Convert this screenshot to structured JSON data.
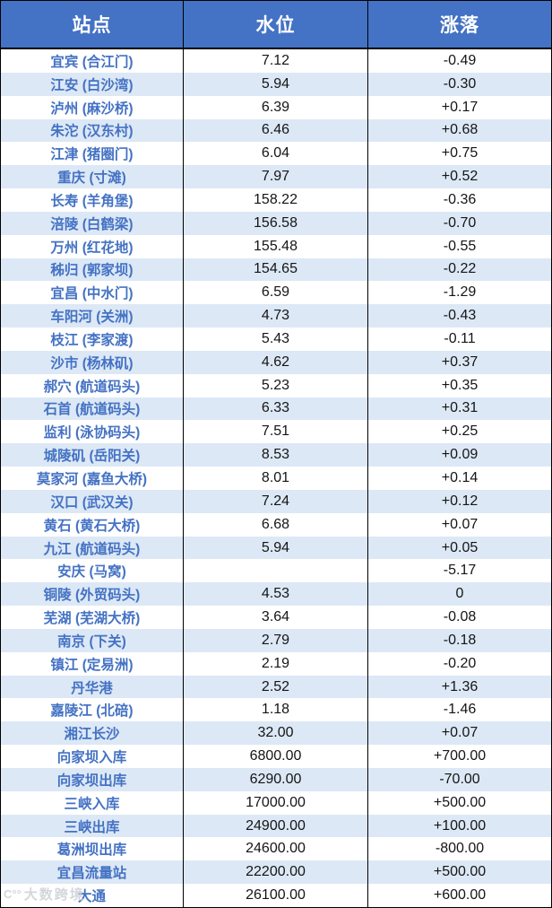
{
  "colors": {
    "header_bg": "#4472C4",
    "header_text": "#FFFFFF",
    "band_row_bg": "#DCE8F5",
    "station_text": "#4472C4",
    "value_text": "#151515",
    "grid_border": "#000000"
  },
  "watermark": {
    "logo": "C°°",
    "text": "大数跨境"
  },
  "chart_data": {
    "type": "table",
    "title": "",
    "columns": [
      "站点",
      "水位",
      "涨落"
    ],
    "rows": [
      [
        "宜宾 (合江门)",
        "7.12",
        "-0.49"
      ],
      [
        "江安 (白沙湾)",
        "5.94",
        "-0.30"
      ],
      [
        "泸州 (麻沙桥)",
        "6.39",
        "+0.17"
      ],
      [
        "朱沱 (汉东村)",
        "6.46",
        "+0.68"
      ],
      [
        "江津 (猪圈门)",
        "6.04",
        "+0.75"
      ],
      [
        "重庆 (寸滩)",
        "7.97",
        "+0.52"
      ],
      [
        "长寿 (羊角堡)",
        "158.22",
        "-0.36"
      ],
      [
        "涪陵 (白鹤梁)",
        "156.58",
        "-0.70"
      ],
      [
        "万州 (红花地)",
        "155.48",
        "-0.55"
      ],
      [
        "秭归 (郭家坝)",
        "154.65",
        "-0.22"
      ],
      [
        "宜昌 (中水门)",
        "6.59",
        "-1.29"
      ],
      [
        "车阳河 (关洲)",
        "4.73",
        "-0.43"
      ],
      [
        "枝江 (李家渡)",
        "5.43",
        "-0.11"
      ],
      [
        "沙市 (杨林矶)",
        "4.62",
        "+0.37"
      ],
      [
        "郝穴 (航道码头)",
        "5.23",
        "+0.35"
      ],
      [
        "石首 (航道码头)",
        "6.33",
        "+0.31"
      ],
      [
        "监利 (泳协码头)",
        "7.51",
        "+0.25"
      ],
      [
        "城陵矶 (岳阳关)",
        "8.53",
        "+0.09"
      ],
      [
        "莫家河 (嘉鱼大桥)",
        "8.01",
        "+0.14"
      ],
      [
        "汉口 (武汉关)",
        "7.24",
        "+0.12"
      ],
      [
        "黄石 (黄石大桥)",
        "6.68",
        "+0.07"
      ],
      [
        "九江 (航道码头)",
        "5.94",
        "+0.05"
      ],
      [
        "安庆 (马窝)",
        "",
        "-5.17"
      ],
      [
        "铜陵 (外贸码头)",
        "4.53",
        "0"
      ],
      [
        "芜湖 (芜湖大桥)",
        "3.64",
        "-0.08"
      ],
      [
        "南京 (下关)",
        "2.79",
        "-0.18"
      ],
      [
        "镇江 (定易洲)",
        "2.19",
        "-0.20"
      ],
      [
        "丹华港",
        "2.52",
        "+1.36"
      ],
      [
        "嘉陵江 (北碚)",
        "1.18",
        "-1.46"
      ],
      [
        "湘江长沙",
        "32.00",
        "+0.07"
      ],
      [
        "向家坝入库",
        "6800.00",
        "+700.00"
      ],
      [
        "向家坝出库",
        "6290.00",
        "-70.00"
      ],
      [
        "三峡入库",
        "17000.00",
        "+500.00"
      ],
      [
        "三峡出库",
        "24900.00",
        "+100.00"
      ],
      [
        "葛洲坝出库",
        "24600.00",
        "-800.00"
      ],
      [
        "宜昌流量站",
        "22200.00",
        "+500.00"
      ],
      [
        "大通",
        "26100.00",
        "+600.00"
      ]
    ]
  }
}
